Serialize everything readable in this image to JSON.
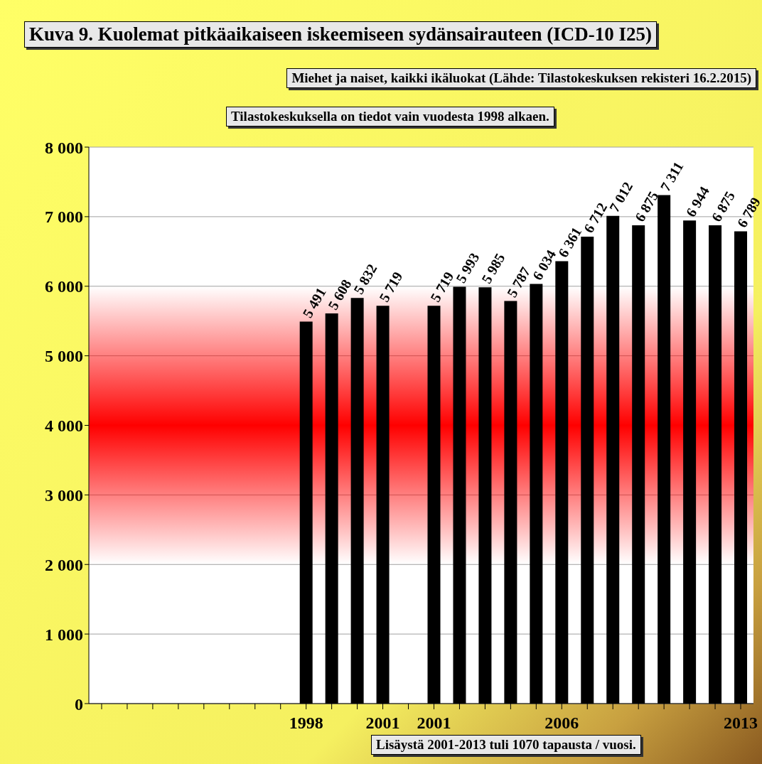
{
  "chart_data": {
    "type": "bar",
    "title": "Kuva 9. Kuolemat pitkäaikaiseen iskeemiseen  sydänsairauteen (ICD-10  I25)",
    "subtitle": "Miehet ja naiset, kaikki ikäluokat (Lähde: Tilastokeskuksen rekisteri 16.2.2015)",
    "annotations": [
      "Tilastokeskuksella on tiedot vain vuodesta 1998 alkaen.",
      "Lisäystä 2001-2013 tuli  1070 tapausta / vuosi."
    ],
    "categories": [
      null,
      null,
      null,
      null,
      null,
      null,
      null,
      null,
      "1998",
      null,
      null,
      "2001",
      null,
      "2001",
      null,
      null,
      null,
      null,
      "2006",
      null,
      null,
      null,
      null,
      null,
      null,
      "2013"
    ],
    "values": [
      null,
      null,
      null,
      null,
      null,
      null,
      null,
      null,
      5491,
      5608,
      5832,
      5719,
      null,
      5719,
      5993,
      5985,
      5787,
      6034,
      6361,
      6712,
      7012,
      6875,
      7311,
      6944,
      6875,
      6789
    ],
    "value_labels": [
      null,
      null,
      null,
      null,
      null,
      null,
      null,
      null,
      "5 491",
      "5 608",
      "5 832",
      "5 719",
      null,
      "5 719",
      "5 993",
      "5 985",
      "5 787",
      "6 034",
      "6 361",
      "6 712",
      "7 012",
      "6 875",
      "7 311",
      "6 944",
      "6 875",
      "6 789"
    ],
    "color": "#000000",
    "ylim": [
      0,
      8000
    ],
    "yticks": [
      {
        "value": 0,
        "label": "0"
      },
      {
        "value": 1000,
        "label": "1 000"
      },
      {
        "value": 2000,
        "label": "2 000"
      },
      {
        "value": 3000,
        "label": "3 000"
      },
      {
        "value": 4000,
        "label": "4 000"
      },
      {
        "value": 5000,
        "label": "5 000"
      },
      {
        "value": 6000,
        "label": "6 000"
      },
      {
        "value": 7000,
        "label": "7 000"
      },
      {
        "value": 8000,
        "label": "8 000"
      }
    ],
    "bands": [
      {
        "axis": "y",
        "from": 2000,
        "to": 6000,
        "color": "#ff0000"
      }
    ],
    "grid": "y"
  }
}
